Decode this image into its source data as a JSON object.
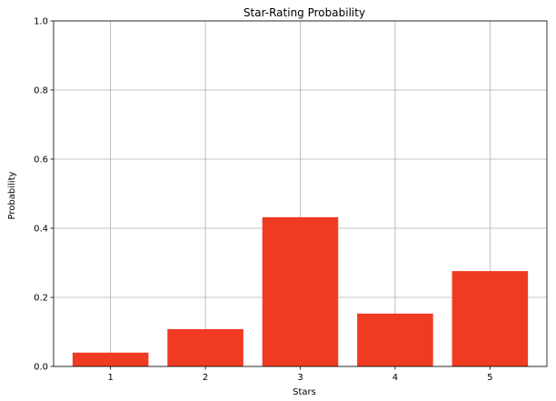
{
  "chart_data": {
    "type": "bar",
    "title": "Star-Rating Probability",
    "xlabel": "Stars",
    "ylabel": "Probability",
    "categories": [
      "1",
      "2",
      "3",
      "4",
      "5"
    ],
    "values": [
      0.04,
      0.108,
      0.432,
      0.153,
      0.276
    ],
    "ylim": [
      0,
      1.0
    ],
    "yticks": [
      "0.0",
      "0.2",
      "0.4",
      "0.6",
      "0.8",
      "1.0"
    ],
    "grid": true,
    "bar_color": "#f03a22"
  }
}
